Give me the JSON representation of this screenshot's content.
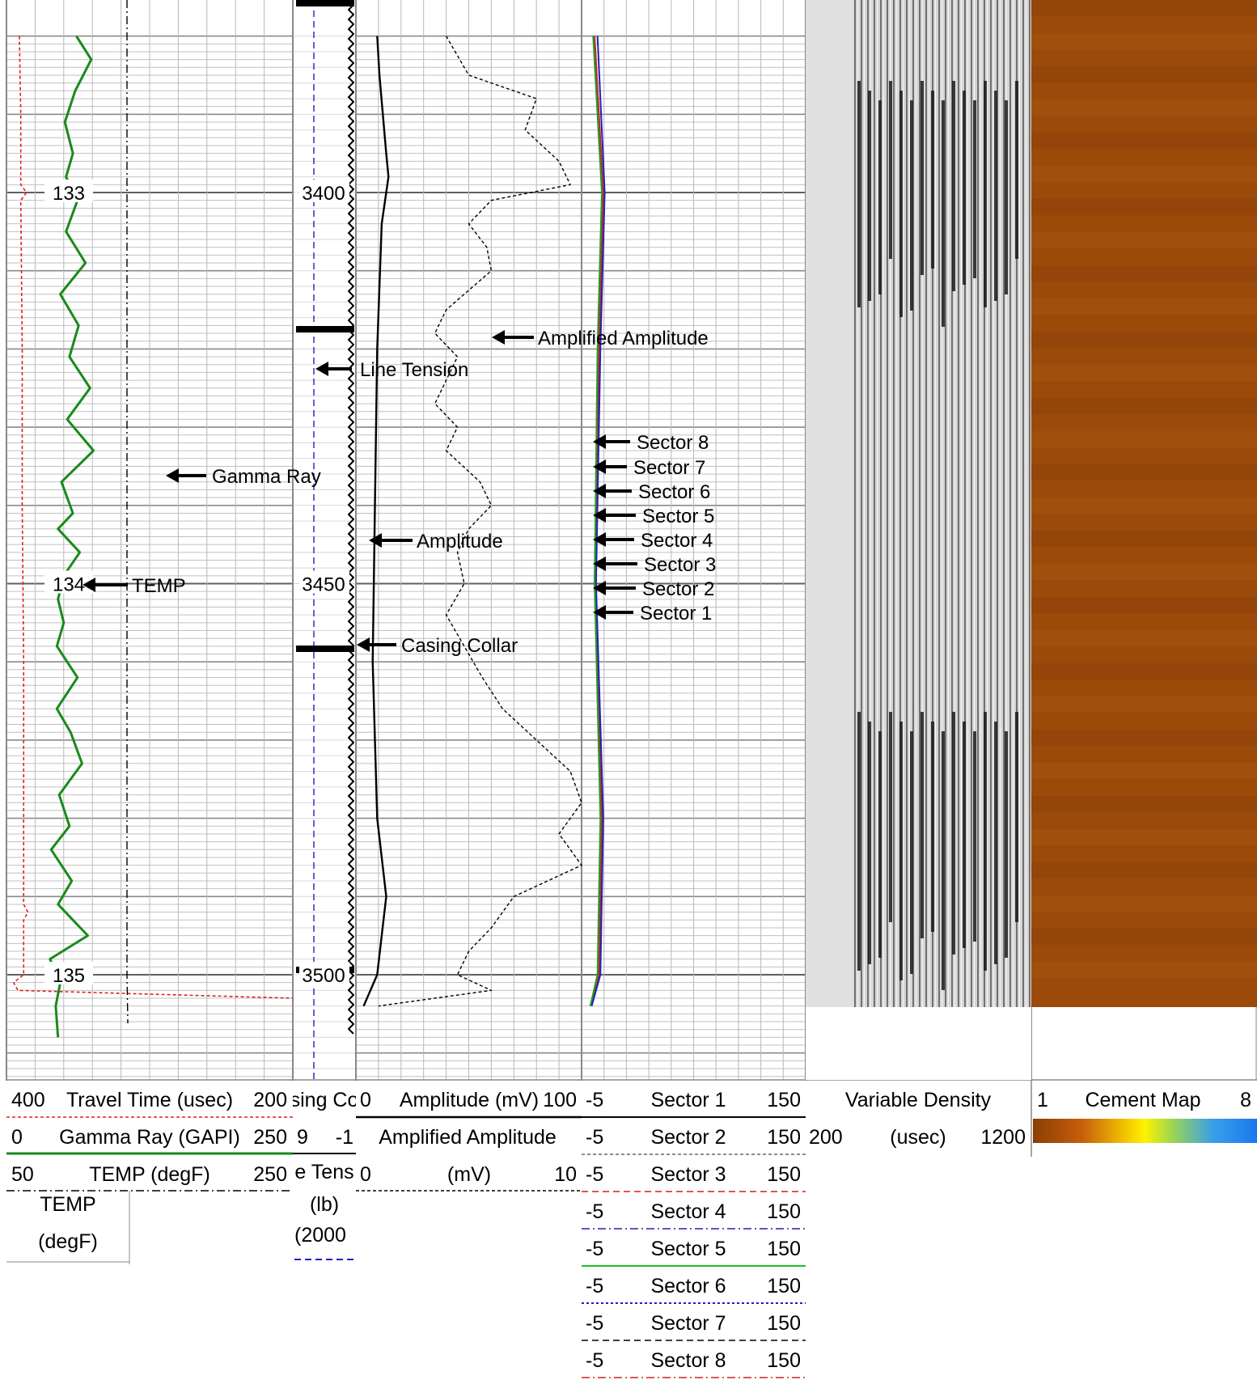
{
  "chart_data": {
    "type": "line",
    "title": "",
    "depth_labels": [
      {
        "id": "d3400",
        "text": "3400"
      },
      {
        "id": "d3450",
        "text": "3450"
      },
      {
        "id": "d3500",
        "text": "3500"
      }
    ],
    "tt_labels": [
      {
        "id": "t133",
        "text": "133"
      },
      {
        "id": "t134",
        "text": "134"
      },
      {
        "id": "t135",
        "text": "135"
      }
    ],
    "annotations": {
      "gamma_ray": "Gamma Ray",
      "temp": "TEMP",
      "line_tension": "Line Tension",
      "amplified_amplitude": "Amplified Amplitude",
      "amplitude": "Amplitude",
      "casing_collar": "Casing Collar",
      "sectors": [
        "Sector 8",
        "Sector 7",
        "Sector 6",
        "Sector 5",
        "Sector 4",
        "Sector 3",
        "Sector 2",
        "Sector 1"
      ]
    },
    "header": {
      "track1": [
        {
          "min": "400",
          "name": "Travel Time (usec)",
          "max": "200"
        },
        {
          "min": "0",
          "name": "Gamma Ray (GAPI)",
          "max": "250"
        },
        {
          "min": "50",
          "name": "TEMP (degF)",
          "max": "250"
        }
      ],
      "track1_temp_name": "TEMP",
      "track1_temp_unit": "(degF)",
      "track2": {
        "casing_min": "9",
        "casing_name": "sing Co",
        "casing_max": "-1",
        "tension_name": "e Tens",
        "tension_unit": "(lb)",
        "tension_min": "(2000"
      },
      "track3": [
        {
          "min": "0",
          "name": "Amplitude (mV)",
          "max": "100"
        },
        {
          "name": "Amplified Amplitude"
        },
        {
          "min": "0",
          "name": "(mV)",
          "max": "10"
        }
      ],
      "track4": [
        {
          "min": "-5",
          "name": "Sector 1",
          "max": "150"
        },
        {
          "min": "-5",
          "name": "Sector 2",
          "max": "150"
        },
        {
          "min": "-5",
          "name": "Sector 3",
          "max": "150"
        },
        {
          "min": "-5",
          "name": "Sector 4",
          "max": "150"
        },
        {
          "min": "-5",
          "name": "Sector 5",
          "max": "150"
        },
        {
          "min": "-5",
          "name": "Sector 6",
          "max": "150"
        },
        {
          "min": "-5",
          "name": "Sector 7",
          "max": "150"
        },
        {
          "min": "-5",
          "name": "Sector 8",
          "max": "150"
        }
      ],
      "track5": {
        "name": "Variable Density",
        "min": "200",
        "unit": "(usec)",
        "max": "1200"
      },
      "track6": {
        "min": "1",
        "name": "Cement Map",
        "max": "8"
      }
    },
    "depth_range": [
      3380,
      3520
    ],
    "series": [
      {
        "name": "Gamma Ray",
        "color": "#1a8a1a",
        "values": [
          [
            3380,
            61
          ],
          [
            3383,
            74
          ],
          [
            3387,
            60
          ],
          [
            3391,
            51
          ],
          [
            3395,
            58
          ],
          [
            3398,
            52
          ],
          [
            3401,
            62
          ],
          [
            3405,
            52
          ],
          [
            3409,
            69
          ],
          [
            3413,
            47
          ],
          [
            3417,
            63
          ],
          [
            3421,
            55
          ],
          [
            3425,
            73
          ],
          [
            3429,
            53
          ],
          [
            3433,
            76
          ],
          [
            3437,
            48
          ],
          [
            3441,
            58
          ],
          [
            3443,
            45
          ],
          [
            3446,
            64
          ],
          [
            3449,
            50
          ],
          [
            3452,
            45
          ],
          [
            3455,
            50
          ],
          [
            3458,
            44
          ],
          [
            3462,
            62
          ],
          [
            3466,
            44
          ],
          [
            3469,
            56
          ],
          [
            3473,
            66
          ],
          [
            3477,
            46
          ],
          [
            3481,
            55
          ],
          [
            3484,
            39
          ],
          [
            3488,
            57
          ],
          [
            3491,
            45
          ],
          [
            3495,
            71
          ],
          [
            3498,
            38
          ],
          [
            3501,
            47
          ],
          [
            3504,
            43
          ],
          [
            3508,
            45
          ]
        ]
      },
      {
        "name": "TEMP",
        "color": "#e02020",
        "values": [
          [
            3380,
            59
          ],
          [
            3390,
            60
          ],
          [
            3399,
            60
          ],
          [
            3400,
            64
          ],
          [
            3401,
            60
          ],
          [
            3420,
            61
          ],
          [
            3440,
            61
          ],
          [
            3460,
            62
          ],
          [
            3480,
            62
          ],
          [
            3491,
            62
          ],
          [
            3492,
            65
          ],
          [
            3493,
            62
          ],
          [
            3500,
            62
          ],
          [
            3501,
            55
          ],
          [
            3502,
            58
          ],
          [
            3503,
            250
          ]
        ]
      },
      {
        "name": "Travel Time",
        "color": "#000000",
        "values": [
          [
            3380,
            134.6
          ],
          [
            3520,
            134.6
          ]
        ]
      },
      {
        "name": "Line Tension",
        "color": "#2020c0",
        "values": [
          [
            3380,
            1650
          ],
          [
            3520,
            1650
          ]
        ]
      },
      {
        "name": "Amplitude",
        "color": "#000000",
        "values": [
          [
            3380,
            8
          ],
          [
            3385,
            9
          ],
          [
            3395,
            12
          ],
          [
            3398,
            13
          ],
          [
            3404,
            10
          ],
          [
            3420,
            8
          ],
          [
            3440,
            7
          ],
          [
            3460,
            6
          ],
          [
            3480,
            8
          ],
          [
            3490,
            12
          ],
          [
            3495,
            10
          ],
          [
            3500,
            8
          ],
          [
            3504,
            2
          ]
        ]
      },
      {
        "name": "Amplified Amplitude",
        "color": "#000000",
        "values": [
          [
            3380,
            4.0
          ],
          [
            3385,
            5.0
          ],
          [
            3388,
            8.0
          ],
          [
            3392,
            7.5
          ],
          [
            3396,
            9.0
          ],
          [
            3399,
            9.5
          ],
          [
            3401,
            6.0
          ],
          [
            3404,
            5.0
          ],
          [
            3407,
            5.8
          ],
          [
            3410,
            6.0
          ],
          [
            3413,
            4.8
          ],
          [
            3415,
            4.0
          ],
          [
            3418,
            3.5
          ],
          [
            3421,
            4.5
          ],
          [
            3424,
            4.0
          ],
          [
            3427,
            3.5
          ],
          [
            3430,
            4.5
          ],
          [
            3433,
            4.0
          ],
          [
            3437,
            5.5
          ],
          [
            3440,
            6.0
          ],
          [
            3443,
            5.0
          ],
          [
            3446,
            4.5
          ],
          [
            3450,
            4.8
          ],
          [
            3454,
            4.0
          ],
          [
            3458,
            4.8
          ],
          [
            3462,
            5.6
          ],
          [
            3466,
            6.5
          ],
          [
            3470,
            8.0
          ],
          [
            3474,
            9.5
          ],
          [
            3478,
            10.0
          ],
          [
            3482,
            9.0
          ],
          [
            3486,
            10.0
          ],
          [
            3490,
            7.0
          ],
          [
            3494,
            6.0
          ],
          [
            3497,
            5.0
          ],
          [
            3500,
            4.5
          ],
          [
            3502,
            6.0
          ],
          [
            3504,
            1.0
          ]
        ]
      },
      {
        "name": "Sector 1",
        "color": "#d02020",
        "values": [
          [
            3380,
            4
          ],
          [
            3400,
            10
          ],
          [
            3420,
            7
          ],
          [
            3450,
            4
          ],
          [
            3480,
            9
          ],
          [
            3500,
            7
          ],
          [
            3504,
            1
          ]
        ]
      },
      {
        "name": "Sector 2",
        "color": "#2020c0",
        "values": [
          [
            3380,
            6
          ],
          [
            3400,
            11
          ],
          [
            3420,
            8
          ],
          [
            3450,
            5
          ],
          [
            3480,
            10
          ],
          [
            3500,
            8
          ],
          [
            3504,
            2
          ]
        ]
      },
      {
        "name": "Sector 3",
        "color": "#20a020",
        "values": [
          [
            3380,
            3
          ],
          [
            3400,
            9
          ],
          [
            3420,
            6
          ],
          [
            3450,
            4
          ],
          [
            3480,
            8
          ],
          [
            3500,
            6
          ],
          [
            3504,
            1
          ]
        ]
      },
      {
        "name": "Casing Collar",
        "color": "#000000",
        "values": [
          [
            3380,
            0
          ],
          [
            3520,
            0
          ]
        ]
      }
    ]
  }
}
